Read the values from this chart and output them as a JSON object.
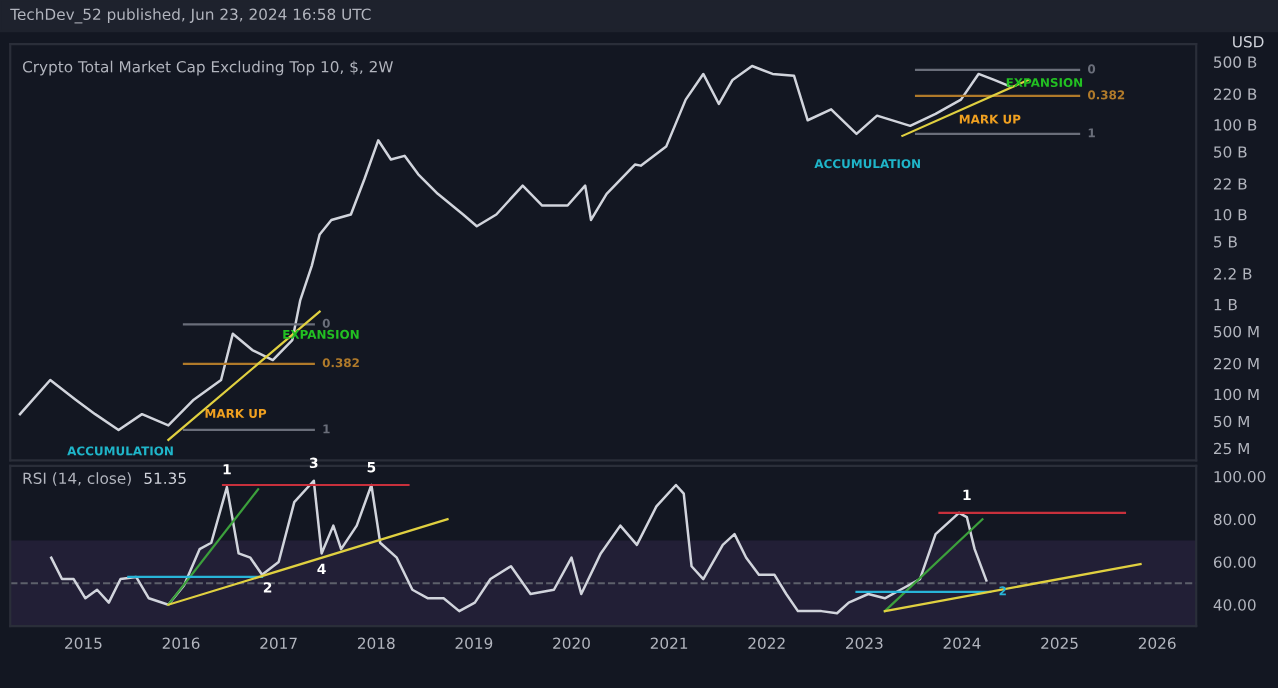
{
  "chart_data": [
    {
      "type": "line",
      "title": "Crypto Total Market Cap Excluding Top 10, $, 2W",
      "ylabel": "USD",
      "log": true,
      "grid": false,
      "tick_labels": "y",
      "xlim": [
        2014.25,
        2026.4
      ],
      "ylim": [
        18400000.0,
        790000000000.0
      ],
      "yticks": [
        {
          "value": 500000000000.0,
          "label": "500 B"
        },
        {
          "value": 220000000000.0,
          "label": "220 B"
        },
        {
          "value": 100000000000.0,
          "label": "100 B"
        },
        {
          "value": 50000000000.0,
          "label": "50 B"
        },
        {
          "value": 22000000000.0,
          "label": "22 B"
        },
        {
          "value": 10000000000.0,
          "label": "10 B"
        },
        {
          "value": 5000000000.0,
          "label": "5 B"
        },
        {
          "value": 2200000000.0,
          "label": "2.2 B"
        },
        {
          "value": 1000000000.0,
          "label": "1 B"
        },
        {
          "value": 500000000.0,
          "label": "500 M"
        },
        {
          "value": 220000000.0,
          "label": "220 M"
        },
        {
          "value": 100000000.0,
          "label": "100 M"
        },
        {
          "value": 50000000.0,
          "label": "50 M"
        },
        {
          "value": 25000000.0,
          "label": "25 M"
        }
      ],
      "series": [
        {
          "color": "#d1d4dc",
          "x": [
            2014.35,
            2014.66,
            2014.92,
            2015.12,
            2015.36,
            2015.6,
            2015.87,
            2016.13,
            2016.41,
            2016.53,
            2016.73,
            2016.94,
            2017.14,
            2017.22,
            2017.34,
            2017.42,
            2017.54,
            2017.74,
            2017.88,
            2018.02,
            2018.15,
            2018.29,
            2018.43,
            2018.63,
            2018.89,
            2019.03,
            2019.23,
            2019.5,
            2019.7,
            2019.96,
            2020.14,
            2020.2,
            2020.36,
            2020.65,
            2020.71,
            2020.97,
            2021.17,
            2021.35,
            2021.51,
            2021.65,
            2021.85,
            2022.06,
            2022.28,
            2022.42,
            2022.66,
            2022.92,
            2023.13,
            2023.47,
            2023.73,
            2023.99,
            2024.17,
            2024.33,
            2024.48
          ],
          "values": [
            60000000.0,
            144000000.0,
            87000000.0,
            60000000.0,
            40000000.0,
            60000000.0,
            45000000.0,
            87000000.0,
            144000000.0,
            470000000.0,
            310000000.0,
            240000000.0,
            400000000.0,
            1100000000.0,
            2700000000.0,
            6000000000.0,
            8700000000.0,
            10000000000.0,
            25000000000.0,
            67000000000.0,
            41000000000.0,
            45000000000.0,
            28000000000.0,
            17000000000.0,
            10000000000.0,
            7400000000.0,
            10000000000.0,
            21000000000.0,
            12600000000.0,
            12600000000.0,
            21000000000.0,
            8700000000.0,
            17000000000.0,
            36000000000.0,
            35000000000.0,
            57000000000.0,
            190000000000.0,
            367000000000.0,
            170000000000.0,
            315000000000.0,
            450000000000.0,
            367000000000.0,
            350000000000.0,
            112000000000.0,
            148000000000.0,
            79000000000.0,
            126000000000.0,
            97000000000.0,
            132000000000.0,
            190000000000.0,
            367000000000.0,
            315000000000.0,
            270000000000.0
          ]
        },
        {
          "color": "#6a6e7a",
          "x": [
            2016.03,
            2017.36
          ],
          "values": [
            600000000.0,
            600000000.0
          ]
        },
        {
          "color": "#b07a2a",
          "x": [
            2016.03,
            2017.36
          ],
          "values": [
            218000000.0,
            218000000.0
          ]
        },
        {
          "color": "#6a6e7a",
          "x": [
            2016.03,
            2017.36
          ],
          "values": [
            40000000.0,
            40000000.0
          ]
        },
        {
          "color": "#e0d040",
          "x": [
            2015.87,
            2017.42
          ],
          "values": [
            31000000.0,
            830000000.0
          ]
        },
        {
          "color": "#6a6e7a",
          "x": [
            2023.53,
            2025.2
          ],
          "values": [
            407000000000.0,
            407000000000.0
          ]
        },
        {
          "color": "#b07a2a",
          "x": [
            2023.53,
            2025.2
          ],
          "values": [
            209000000000.0,
            209000000000.0
          ]
        },
        {
          "color": "#6a6e7a",
          "x": [
            2023.53,
            2025.2
          ],
          "values": [
            79000000000.0,
            79000000000.0
          ]
        },
        {
          "color": "#e0d040",
          "x": [
            2023.39,
            2024.68
          ],
          "values": [
            75000000000.0,
            315000000000.0
          ]
        }
      ],
      "annotations": [
        "TechDev_52 published, Jun 23, 2024 16:58 UTC",
        "ACCUMULATION",
        "MARK UP",
        "EXPANSION",
        {
          "text": "0",
          "x": 2017.36,
          "y": 600000000.0
        },
        {
          "text": "0.382",
          "x": 2017.36,
          "y": 218000000.0
        },
        {
          "text": "1",
          "x": 2017.36,
          "y": 40000000.0
        },
        "ACCUMULATION",
        "MARK UP",
        "EXPANSION",
        {
          "text": "0",
          "x": 2025.2,
          "y": 407000000000.0
        },
        {
          "text": "0.382",
          "x": 2025.2,
          "y": 209000000000.0
        },
        {
          "text": "1",
          "x": 2025.2,
          "y": 79000000000.0
        }
      ]
    },
    {
      "type": "line",
      "title": "RSI (14, close)",
      "subtitle": "51.35",
      "grid": false,
      "xlim": [
        2014.25,
        2026.4
      ],
      "ylim": [
        30,
        105
      ],
      "xticks": [
        2015,
        2016,
        2017,
        2018,
        2019,
        2020,
        2021,
        2022,
        2023,
        2024,
        2025,
        2026
      ],
      "yticks": [
        {
          "value": 40,
          "label": "40.00"
        },
        {
          "value": 60,
          "label": "60.00"
        },
        {
          "value": 80,
          "label": "80.00"
        },
        {
          "value": 100,
          "label": "100.00"
        }
      ],
      "bands": [
        {
          "axis": "y",
          "from": 30,
          "to": 70,
          "color": "#221f36"
        }
      ],
      "ref_lines": [
        {
          "axis": "y",
          "value": 50,
          "color": "#5d606b",
          "line_style": "dashed"
        }
      ],
      "series": [
        {
          "color": "#d1d4dc",
          "x": [
            2014.67,
            2014.78,
            2014.9,
            2015.02,
            2015.14,
            2015.26,
            2015.38,
            2015.54,
            2015.67,
            2015.87,
            2016.03,
            2016.19,
            2016.31,
            2016.47,
            2016.59,
            2016.71,
            2016.83,
            2017.0,
            2017.16,
            2017.36,
            2017.44,
            2017.56,
            2017.64,
            2017.8,
            2017.95,
            2018.04,
            2018.21,
            2018.37,
            2018.53,
            2018.69,
            2018.85,
            2019.01,
            2019.17,
            2019.38,
            2019.58,
            2019.82,
            2020.0,
            2020.1,
            2020.3,
            2020.5,
            2020.67,
            2020.87,
            2021.07,
            2021.15,
            2021.23,
            2021.35,
            2021.55,
            2021.67,
            2021.79,
            2021.92,
            2022.08,
            2022.2,
            2022.32,
            2022.56,
            2022.72,
            2022.84,
            2023.04,
            2023.21,
            2023.37,
            2023.57,
            2023.73,
            2023.97,
            2024.05,
            2024.13,
            2024.25
          ],
          "values": [
            62,
            52,
            52,
            43,
            47,
            41,
            52,
            53,
            43,
            40,
            49,
            66,
            69,
            95,
            64,
            62,
            54,
            60,
            88,
            98,
            64,
            77,
            66,
            77,
            96,
            69,
            62,
            47,
            43,
            43,
            37,
            41,
            52,
            58,
            45,
            47,
            62,
            45,
            64,
            77,
            68,
            86,
            96,
            92,
            58,
            52,
            68,
            73,
            62,
            54,
            54,
            45,
            37,
            37,
            36,
            41,
            45,
            43,
            47,
            52,
            73,
            83,
            81,
            66,
            51.35
          ]
        },
        {
          "color": "#c8303c",
          "x": [
            2016.43,
            2018.33
          ],
          "values": [
            96,
            96
          ]
        },
        {
          "color": "#c8303c",
          "x": [
            2023.77,
            2025.67
          ],
          "values": [
            83,
            83
          ]
        },
        {
          "color": "#3ca03c",
          "x": [
            2015.87,
            2016.79
          ],
          "values": [
            40,
            94
          ]
        },
        {
          "color": "#3ca03c",
          "x": [
            2023.21,
            2024.21
          ],
          "values": [
            37,
            80
          ]
        },
        {
          "color": "#28b4d8",
          "x": [
            2015.46,
            2016.83
          ],
          "values": [
            53,
            53
          ]
        },
        {
          "color": "#28b4d8",
          "x": [
            2022.92,
            2024.29
          ],
          "values": [
            46,
            46
          ]
        },
        {
          "color": "#e0d040",
          "x": [
            2015.87,
            2018.73
          ],
          "values": [
            40,
            80
          ]
        },
        {
          "color": "#e0d040",
          "x": [
            2023.21,
            2025.83
          ],
          "values": [
            37,
            59
          ]
        }
      ],
      "annotations": [
        {
          "text": "1",
          "x": 2016.47,
          "y": 95
        },
        {
          "text": "3",
          "x": 2017.36,
          "y": 98
        },
        {
          "text": "5",
          "x": 2017.95,
          "y": 96
        },
        {
          "text": "2",
          "x": 2016.83,
          "y": 54
        },
        {
          "text": "4",
          "x": 2017.44,
          "y": 64
        },
        {
          "text": "1",
          "x": 2024.05,
          "y": 83
        },
        {
          "text": "2",
          "x": 2024.29,
          "y": 46
        }
      ]
    }
  ]
}
